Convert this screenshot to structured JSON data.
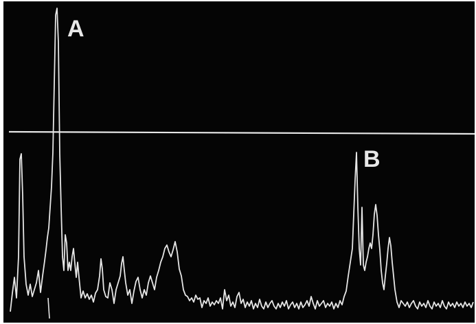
{
  "labels": {
    "peak_a": "A",
    "peak_b": "B"
  },
  "colors": {
    "background": "#050505",
    "trace": "#e6e6e6",
    "frame": "#ffffff"
  }
}
